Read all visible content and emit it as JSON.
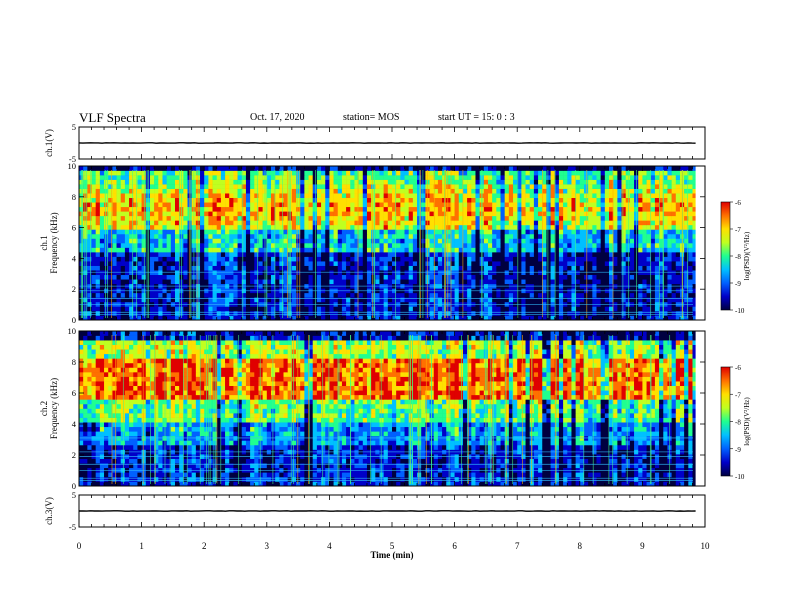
{
  "header": {
    "title": "VLF Spectra",
    "date": "Oct. 17, 2020",
    "station": "station= MOS",
    "start": "start  UT =   15: 0  : 3"
  },
  "chart_data": [
    {
      "type": "line",
      "panel": "ch1-waveform",
      "ylabel": "ch.1(V)",
      "ylim": [
        -5,
        5
      ],
      "yticks": [
        5,
        -5
      ],
      "x": [
        0,
        9.85
      ],
      "y": [
        0,
        0
      ]
    },
    {
      "type": "heatmap",
      "panel": "ch1-spectrogram",
      "ylabel": "ch.1\nFrequency (kHz)",
      "ylabel_lines": [
        "ch.1",
        "Frequency (kHz)"
      ],
      "ylim": [
        0,
        10
      ],
      "yticks": [
        0,
        2,
        4,
        6,
        8,
        10
      ],
      "xlim": [
        0,
        10
      ],
      "colorbar": {
        "label": "log(PSD)(V²/Hz)",
        "range": [
          -10,
          -6
        ],
        "ticks": [
          "-6",
          "-7",
          "-8",
          "-9",
          "-10"
        ]
      }
    },
    {
      "type": "heatmap",
      "panel": "ch2-spectrogram",
      "ylabel": "ch.2\nFrequency (kHz)",
      "ylabel_lines": [
        "ch.2",
        "Frequency (kHz)"
      ],
      "ylim": [
        0,
        10
      ],
      "yticks": [
        0,
        2,
        4,
        6,
        8,
        10
      ],
      "xlim": [
        0,
        10
      ],
      "colorbar": {
        "label": "log(PSD)(V²/Hz)",
        "range": [
          -10,
          -6
        ],
        "ticks": [
          "-6",
          "-7",
          "-8",
          "-9",
          "-10"
        ]
      }
    },
    {
      "type": "line",
      "panel": "ch3-waveform",
      "ylabel": "ch.3(V)",
      "ylim": [
        -5,
        5
      ],
      "yticks": [
        5,
        -5
      ],
      "x": [
        0,
        9.85
      ],
      "y": [
        0,
        0
      ]
    }
  ],
  "xaxis": {
    "label": "Time (min)",
    "xlim": [
      0,
      10
    ],
    "ticks": [
      "0",
      "1",
      "2",
      "3",
      "4",
      "5",
      "6",
      "7",
      "8",
      "9",
      "10"
    ]
  },
  "colors": {
    "colormap": [
      "#000040",
      "#0000c8",
      "#0060ff",
      "#00c0ff",
      "#20ff90",
      "#c0ff20",
      "#ffe000",
      "#ff7000",
      "#e00000"
    ]
  }
}
